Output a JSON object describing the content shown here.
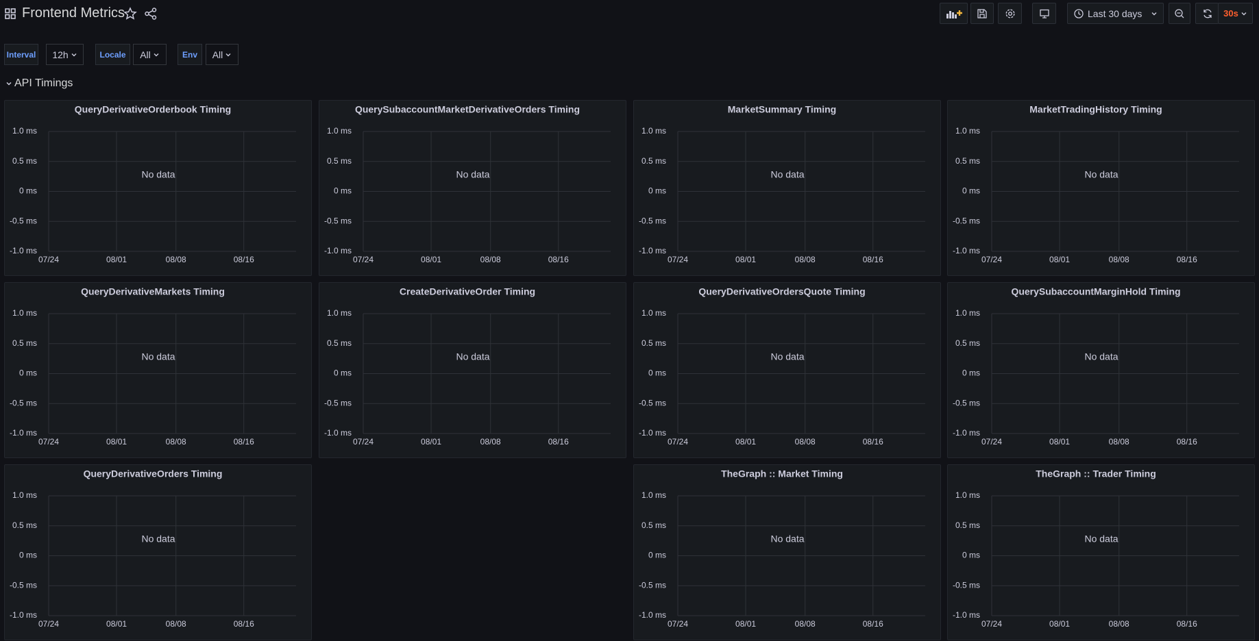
{
  "header": {
    "title": "Frontend Metrics",
    "time_range": "Last 30 days",
    "refresh": "30s"
  },
  "variables": [
    {
      "label": "Interval",
      "value": "12h"
    },
    {
      "label": "Locale",
      "value": "All"
    },
    {
      "label": "Env",
      "value": "All"
    }
  ],
  "section": {
    "title": "API Timings"
  },
  "panel_axes": {
    "ylim": [
      -1,
      1
    ],
    "yticks": [
      {
        "value": 1,
        "label": "1.0 ms"
      },
      {
        "value": 0.5,
        "label": "0.5 ms"
      },
      {
        "value": 0,
        "label": "0 ms"
      },
      {
        "value": -0.5,
        "label": "-0.5 ms"
      },
      {
        "value": -1,
        "label": "-1.0 ms"
      }
    ],
    "xticks": [
      "07/24",
      "08/01",
      "08/08",
      "08/16"
    ]
  },
  "no_data": "No data",
  "panel_rows": [
    [
      "QueryDerivativeOrderbook Timing",
      "QuerySubaccountMarketDerivativeOrders Timing",
      "MarketSummary Timing",
      "MarketTradingHistory Timing"
    ],
    [
      "QueryDerivativeMarkets Timing",
      "CreateDerivativeOrder Timing",
      "QueryDerivativeOrdersQuote Timing",
      "QuerySubaccountMarginHold Timing"
    ],
    [
      "QueryDerivativeOrders Timing",
      null,
      "TheGraph :: Market Timing",
      "TheGraph :: Trader Timing"
    ]
  ]
}
